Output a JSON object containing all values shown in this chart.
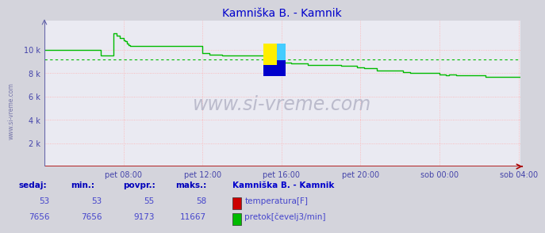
{
  "title": "Kamniška B. - Kamnik",
  "title_color": "#0000cc",
  "bg_color": "#d4d4dc",
  "plot_bg_color": "#eaeaf2",
  "grid_color": "#ffb0b0",
  "avg_line_color": "#00bb00",
  "avg_line_value": 9173,
  "ymin": 0,
  "ymax": 12500,
  "yticks": [
    2000,
    4000,
    6000,
    8000,
    10000
  ],
  "ytick_labels": [
    "2 k",
    "4 k",
    "6 k",
    "8 k",
    "10 k"
  ],
  "xtick_labels": [
    "pet 08:00",
    "pet 12:00",
    "pet 16:00",
    "pet 20:00",
    "sob 00:00",
    "sob 04:00"
  ],
  "flow_color": "#00bb00",
  "temp_color": "#cc0000",
  "watermark": "www.si-vreme.com",
  "watermark_color": "#bbbbcc",
  "sidebar_text": "www.si-vreme.com",
  "sidebar_color": "#7777aa",
  "footer_label_color": "#0000bb",
  "footer_value_color": "#4444cc",
  "footer_title_color": "#0000cc",
  "sedaj_label": "sedaj:",
  "min_label": "min.:",
  "povpr_label": "povpr.:",
  "maks_label": "maks.:",
  "temp_sedaj": 53,
  "temp_min": 53,
  "temp_povpr": 55,
  "temp_maks": 58,
  "flow_sedaj": 7656,
  "flow_min": 7656,
  "flow_povpr": 9173,
  "flow_maks": 11667,
  "legend_title": "Kamniška B. - Kamnik",
  "legend_temp": "temperatura[F]",
  "legend_flow": "pretok[čevelj3/min]",
  "flow_data": [
    10000,
    10000,
    10000,
    10000,
    10000,
    10000,
    10000,
    10000,
    10000,
    10000,
    10000,
    10000,
    10000,
    10000,
    10000,
    10000,
    10000,
    10000,
    10000,
    10000,
    10000,
    10000,
    10000,
    10000,
    10000,
    10000,
    10000,
    10000,
    10000,
    10000,
    10000,
    10000,
    10000,
    10000,
    9500,
    9500,
    9500,
    9500,
    9500,
    9500,
    9500,
    9500,
    11400,
    11400,
    11200,
    11200,
    11000,
    11000,
    10800,
    10700,
    10500,
    10400,
    10300,
    10300,
    10300,
    10300,
    10300,
    10300,
    10300,
    10300,
    10300,
    10300,
    10300,
    10300,
    10300,
    10300,
    10300,
    10300,
    10300,
    10300,
    10300,
    10300,
    10300,
    10300,
    10300,
    10300,
    10300,
    10300,
    10300,
    10300,
    10300,
    10300,
    10300,
    10300,
    10300,
    10300,
    10300,
    10300,
    10300,
    10300,
    10300,
    10300,
    10300,
    10300,
    10300,
    10300,
    9700,
    9700,
    9700,
    9700,
    9600,
    9600,
    9600,
    9600,
    9600,
    9600,
    9600,
    9600,
    9500,
    9500,
    9500,
    9500,
    9500,
    9500,
    9500,
    9500,
    9500,
    9500,
    9500,
    9500,
    9500,
    9500,
    9500,
    9500,
    9500,
    9500,
    9500,
    9500,
    9500,
    9500,
    9500,
    9500,
    9500,
    9500,
    9500,
    9500,
    9500,
    9500,
    9500,
    9500,
    9300,
    9300,
    9300,
    9300,
    8900,
    8900,
    8900,
    8900,
    8900,
    8900,
    8800,
    8800,
    8800,
    8800,
    8800,
    8800,
    8800,
    8800,
    8800,
    8800,
    8700,
    8700,
    8700,
    8700,
    8700,
    8700,
    8700,
    8700,
    8700,
    8700,
    8700,
    8700,
    8700,
    8700,
    8700,
    8700,
    8700,
    8700,
    8700,
    8700,
    8600,
    8600,
    8600,
    8600,
    8600,
    8600,
    8600,
    8600,
    8600,
    8600,
    8500,
    8500,
    8500,
    8500,
    8400,
    8400,
    8400,
    8400,
    8400,
    8400,
    8400,
    8400,
    8200,
    8200,
    8200,
    8200,
    8200,
    8200,
    8200,
    8200,
    8200,
    8200,
    8200,
    8200,
    8200,
    8200,
    8200,
    8200,
    8100,
    8100,
    8100,
    8100,
    8000,
    8000,
    8000,
    8000,
    8000,
    8000,
    8000,
    8000,
    8000,
    8000,
    8000,
    8000,
    8000,
    8000,
    8000,
    8000,
    8000,
    8000,
    7900,
    7900,
    7900,
    7900,
    7800,
    7800,
    7900,
    7900,
    7900,
    7900,
    7800,
    7800,
    7800,
    7800,
    7800,
    7800,
    7800,
    7800,
    7800,
    7800,
    7800,
    7800,
    7800,
    7800,
    7800,
    7800,
    7800,
    7800,
    7700,
    7700,
    7700,
    7700,
    7700,
    7700,
    7656,
    7656,
    7656,
    7656,
    7656,
    7656,
    7656,
    7656,
    7656,
    7656,
    7656,
    7656,
    7656,
    7656,
    7656,
    7656
  ]
}
